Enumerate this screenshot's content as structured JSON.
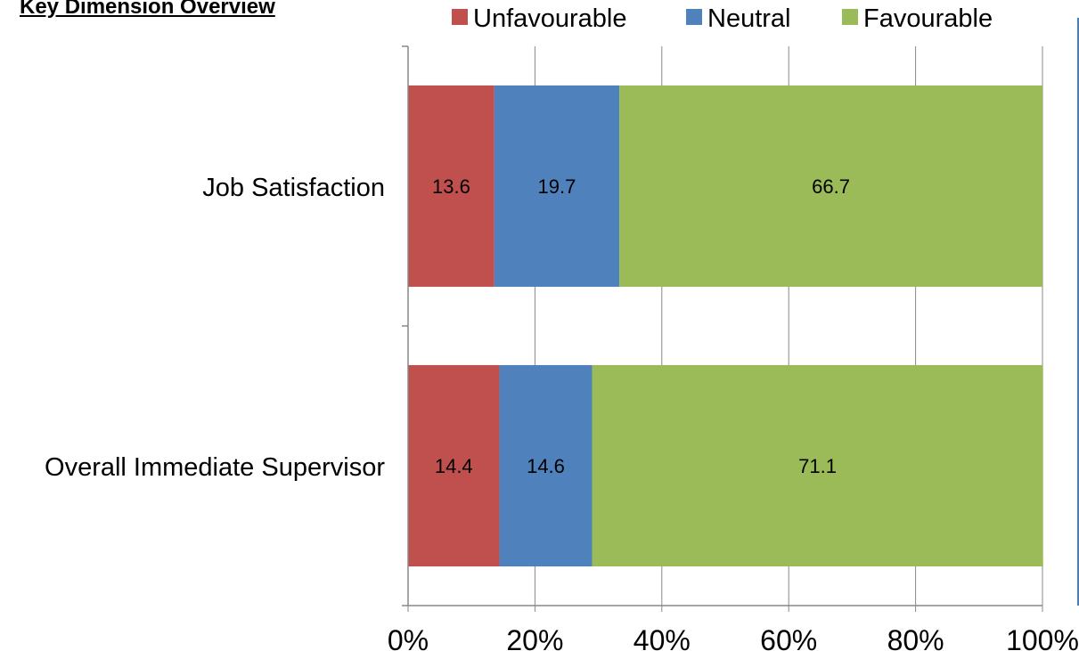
{
  "page_title": "Key Dimension Overview",
  "chart_data": {
    "type": "bar",
    "orientation": "horizontal",
    "stacked": "percent",
    "categories": [
      "Job Satisfaction",
      "Overall Immediate Supervisor"
    ],
    "series": [
      {
        "name": "Unfavourable",
        "color": "#c0504d",
        "values": [
          13.6,
          14.4
        ]
      },
      {
        "name": "Neutral",
        "color": "#4f81bd",
        "values": [
          19.7,
          14.6
        ]
      },
      {
        "name": "Favourable",
        "color": "#9bbb59",
        "values": [
          66.7,
          71.1
        ]
      }
    ],
    "xlim": [
      0,
      100
    ],
    "xticks": [
      "0%",
      "20%",
      "40%",
      "60%",
      "80%",
      "100%"
    ],
    "grid": true,
    "legend": "top"
  }
}
